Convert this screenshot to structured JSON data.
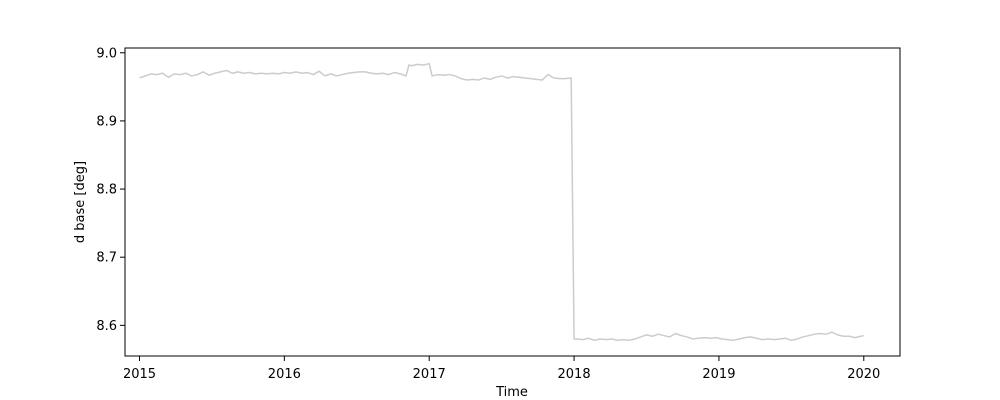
{
  "chart_data": {
    "type": "line",
    "title": "",
    "xlabel": "Time",
    "ylabel": "d base [deg]",
    "xlim": [
      2014.9,
      2020.25
    ],
    "ylim": [
      8.555,
      9.007
    ],
    "xticks": [
      2015,
      2016,
      2017,
      2018,
      2019,
      2020
    ],
    "xtick_labels": [
      "2015",
      "2016",
      "2017",
      "2018",
      "2019",
      "2020"
    ],
    "yticks": [
      8.6,
      8.7,
      8.8,
      8.9,
      9.0
    ],
    "ytick_labels": [
      "8.6",
      "8.7",
      "8.8",
      "8.9",
      "9.0"
    ],
    "grid": false,
    "legend": "none",
    "series": [
      {
        "color": "#cccccc",
        "x": [
          2015.0,
          2015.04,
          2015.08,
          2015.12,
          2015.16,
          2015.2,
          2015.24,
          2015.28,
          2015.32,
          2015.36,
          2015.4,
          2015.44,
          2015.48,
          2015.52,
          2015.56,
          2015.6,
          2015.64,
          2015.68,
          2015.72,
          2015.76,
          2015.8,
          2015.84,
          2015.88,
          2015.92,
          2015.96,
          2016.0,
          2016.04,
          2016.08,
          2016.12,
          2016.16,
          2016.2,
          2016.24,
          2016.28,
          2016.32,
          2016.36,
          2016.4,
          2016.44,
          2016.48,
          2016.52,
          2016.56,
          2016.6,
          2016.64,
          2016.68,
          2016.72,
          2016.76,
          2016.8,
          2016.84,
          2016.86,
          2016.88,
          2016.92,
          2016.96,
          2017.0,
          2017.02,
          2017.06,
          2017.1,
          2017.14,
          2017.18,
          2017.22,
          2017.26,
          2017.3,
          2017.34,
          2017.38,
          2017.42,
          2017.46,
          2017.5,
          2017.54,
          2017.58,
          2017.62,
          2017.66,
          2017.7,
          2017.74,
          2017.78,
          2017.82,
          2017.86,
          2017.9,
          2017.94,
          2017.98,
          2018.0,
          2018.02,
          2018.06,
          2018.1,
          2018.14,
          2018.18,
          2018.22,
          2018.26,
          2018.3,
          2018.34,
          2018.38,
          2018.42,
          2018.46,
          2018.5,
          2018.54,
          2018.58,
          2018.62,
          2018.66,
          2018.7,
          2018.74,
          2018.78,
          2018.82,
          2018.86,
          2018.9,
          2018.94,
          2018.98,
          2019.02,
          2019.06,
          2019.1,
          2019.14,
          2019.18,
          2019.22,
          2019.26,
          2019.3,
          2019.34,
          2019.38,
          2019.42,
          2019.46,
          2019.5,
          2019.54,
          2019.58,
          2019.62,
          2019.66,
          2019.7,
          2019.74,
          2019.78,
          2019.82,
          2019.86,
          2019.9,
          2019.94,
          2019.98,
          2020.0
        ],
        "y": [
          8.963,
          8.966,
          8.969,
          8.968,
          8.97,
          8.964,
          8.969,
          8.968,
          8.97,
          8.966,
          8.968,
          8.972,
          8.967,
          8.97,
          8.972,
          8.974,
          8.97,
          8.972,
          8.97,
          8.971,
          8.969,
          8.97,
          8.969,
          8.97,
          8.969,
          8.971,
          8.97,
          8.972,
          8.97,
          8.971,
          8.968,
          8.973,
          8.966,
          8.969,
          8.966,
          8.968,
          8.97,
          8.971,
          8.972,
          8.972,
          8.97,
          8.969,
          8.97,
          8.968,
          8.971,
          8.969,
          8.966,
          8.982,
          8.981,
          8.983,
          8.982,
          8.984,
          8.966,
          8.968,
          8.967,
          8.968,
          8.966,
          8.962,
          8.96,
          8.961,
          8.96,
          8.963,
          8.961,
          8.964,
          8.966,
          8.963,
          8.965,
          8.964,
          8.963,
          8.962,
          8.961,
          8.96,
          8.968,
          8.963,
          8.962,
          8.962,
          8.963,
          8.58,
          8.58,
          8.579,
          8.581,
          8.578,
          8.58,
          8.579,
          8.58,
          8.578,
          8.579,
          8.578,
          8.58,
          8.583,
          8.586,
          8.584,
          8.587,
          8.585,
          8.583,
          8.588,
          8.585,
          8.583,
          8.58,
          8.581,
          8.582,
          8.581,
          8.582,
          8.58,
          8.579,
          8.578,
          8.58,
          8.582,
          8.583,
          8.581,
          8.579,
          8.58,
          8.579,
          8.58,
          8.581,
          8.578,
          8.58,
          8.583,
          8.585,
          8.587,
          8.588,
          8.587,
          8.59,
          8.586,
          8.584,
          8.584,
          8.582,
          8.584,
          8.585
        ]
      }
    ]
  }
}
